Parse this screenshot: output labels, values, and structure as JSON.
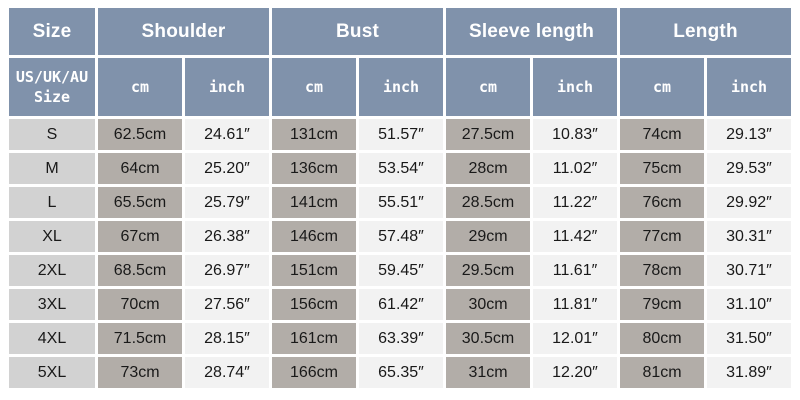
{
  "colors": {
    "page_bg": "#ffffff",
    "header_bg": "#8092ab",
    "header_text": "#ffffff",
    "size_col_bg": "#d2d2d2",
    "cm_col_bg": "#b2ada8",
    "inch_col_bg": "#f2f2f2",
    "data_text": "#191919"
  },
  "chart_data": {
    "type": "table",
    "column_groups": [
      "Size",
      "Shoulder",
      "Bust",
      "Sleeve length",
      "Length"
    ],
    "size_subheader_lines": [
      "US/UK/AU",
      "Size"
    ],
    "unit_cm": "cm",
    "unit_inch": "inch",
    "rows": [
      [
        "S",
        "62.5cm",
        "24.61″",
        "131cm",
        "51.57″",
        "27.5cm",
        "10.83″",
        "74cm",
        "29.13″"
      ],
      [
        "M",
        "64cm",
        "25.20″",
        "136cm",
        "53.54″",
        "28cm",
        "11.02″",
        "75cm",
        "29.53″"
      ],
      [
        "L",
        "65.5cm",
        "25.79″",
        "141cm",
        "55.51″",
        "28.5cm",
        "11.22″",
        "76cm",
        "29.92″"
      ],
      [
        "XL",
        "67cm",
        "26.38″",
        "146cm",
        "57.48″",
        "29cm",
        "11.42″",
        "77cm",
        "30.31″"
      ],
      [
        "2XL",
        "68.5cm",
        "26.97″",
        "151cm",
        "59.45″",
        "29.5cm",
        "11.61″",
        "78cm",
        "30.71″"
      ],
      [
        "3XL",
        "70cm",
        "27.56″",
        "156cm",
        "61.42″",
        "30cm",
        "11.81″",
        "79cm",
        "31.10″"
      ],
      [
        "4XL",
        "71.5cm",
        "28.15″",
        "161cm",
        "63.39″",
        "30.5cm",
        "12.01″",
        "80cm",
        "31.50″"
      ],
      [
        "5XL",
        "73cm",
        "28.74″",
        "166cm",
        "65.35″",
        "31cm",
        "12.20″",
        "81cm",
        "31.89″"
      ]
    ]
  }
}
